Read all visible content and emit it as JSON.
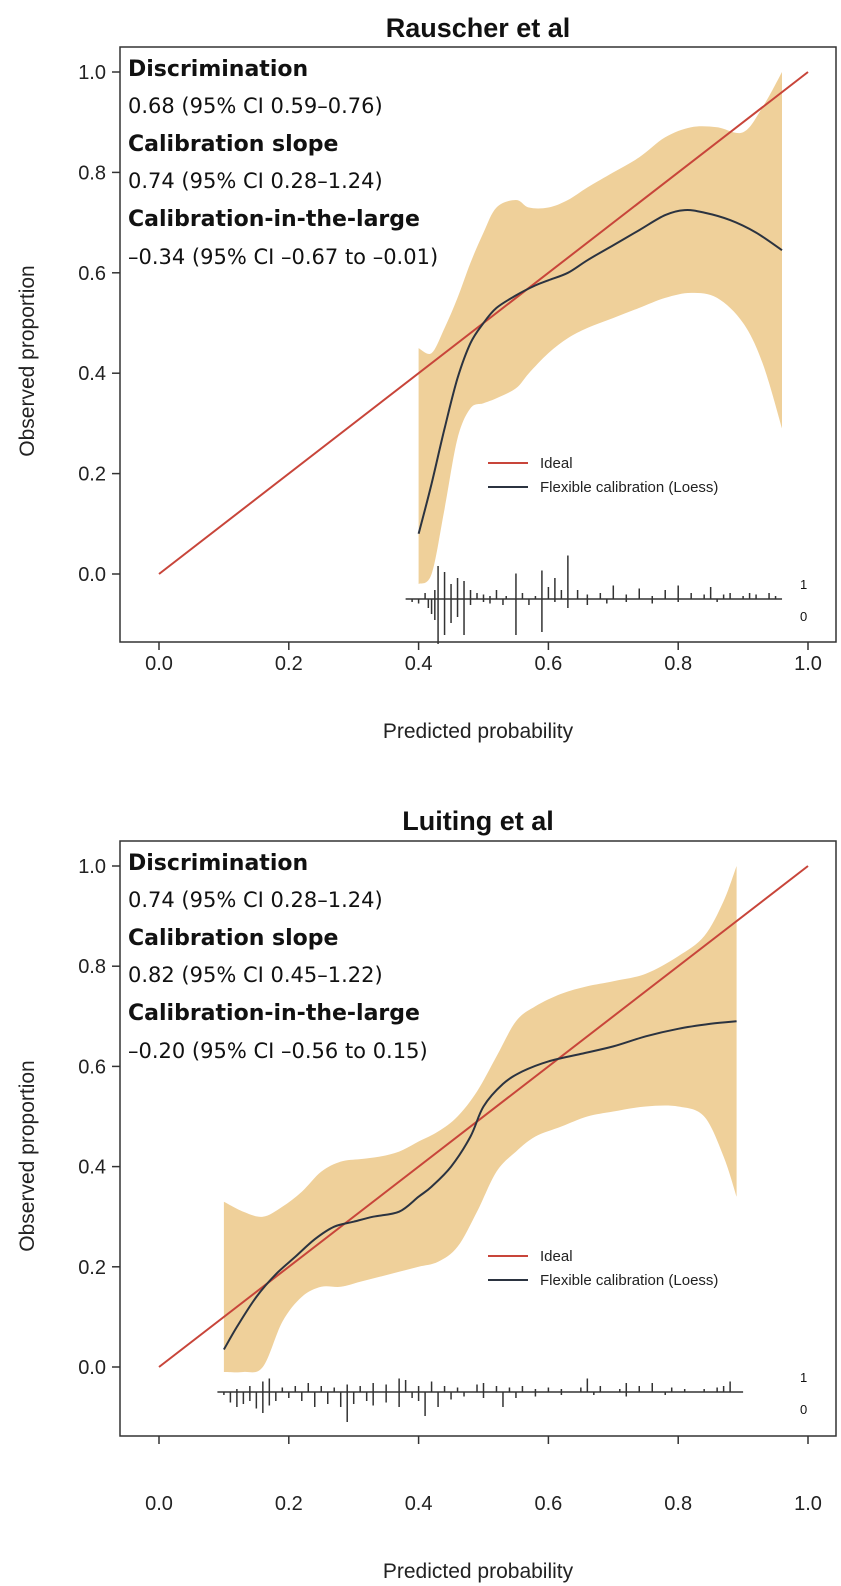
{
  "chart_data": [
    {
      "type": "line",
      "title": "Rauscher et al",
      "xlabel": "Predicted probability",
      "ylabel": "Observed proportion",
      "xlim": [
        -0.06,
        1.03
      ],
      "ylim": [
        -0.15,
        1.03
      ],
      "x_ticks": [
        0.0,
        0.2,
        0.4,
        0.6,
        0.8,
        1.0
      ],
      "y_ticks": [
        0.0,
        0.2,
        0.4,
        0.6,
        0.8,
        1.0
      ],
      "grid": false,
      "colors": {
        "ideal": "#c8453a",
        "loess": "#2b3340",
        "band": "#efd09a"
      },
      "stats": [
        {
          "label": "Discrimination",
          "value": "0.68 (95% CI 0.59–0.76)"
        },
        {
          "label": "Calibration slope",
          "value": "0.74 (95% CI 0.28–1.24)"
        },
        {
          "label": "Calibration-in-the-large",
          "value": "–0.34 (95% CI –0.67 to –0.01)"
        }
      ],
      "legend": {
        "position": "bottom-right",
        "entries": [
          "Ideal",
          "Flexible calibration (Loess)"
        ]
      },
      "series": [
        {
          "name": "Ideal",
          "x": [
            0.0,
            1.0
          ],
          "y": [
            0.0,
            1.0
          ]
        },
        {
          "name": "Flexible calibration (Loess)",
          "x": [
            0.4,
            0.42,
            0.44,
            0.46,
            0.48,
            0.5,
            0.52,
            0.55,
            0.58,
            0.6,
            0.63,
            0.66,
            0.7,
            0.74,
            0.78,
            0.81,
            0.84,
            0.88,
            0.92,
            0.96
          ],
          "y": [
            0.08,
            0.18,
            0.29,
            0.39,
            0.46,
            0.5,
            0.53,
            0.555,
            0.575,
            0.585,
            0.6,
            0.625,
            0.655,
            0.685,
            0.715,
            0.725,
            0.72,
            0.705,
            0.68,
            0.645
          ]
        }
      ],
      "band": {
        "x": [
          0.4,
          0.42,
          0.44,
          0.46,
          0.48,
          0.5,
          0.52,
          0.55,
          0.57,
          0.6,
          0.63,
          0.66,
          0.7,
          0.74,
          0.78,
          0.82,
          0.86,
          0.9,
          0.93,
          0.96
        ],
        "upper": [
          0.45,
          0.44,
          0.49,
          0.55,
          0.62,
          0.68,
          0.73,
          0.745,
          0.73,
          0.73,
          0.745,
          0.77,
          0.8,
          0.83,
          0.87,
          0.89,
          0.89,
          0.88,
          0.93,
          1.0
        ],
        "lower": [
          -0.02,
          0.0,
          0.13,
          0.27,
          0.33,
          0.34,
          0.35,
          0.37,
          0.4,
          0.44,
          0.47,
          0.49,
          0.51,
          0.53,
          0.55,
          0.56,
          0.55,
          0.5,
          0.42,
          0.29
        ]
      },
      "rug": {
        "x_range": [
          0.38,
          0.96
        ],
        "events": [
          [
            0.41,
            0.02
          ],
          [
            0.425,
            0.03
          ],
          [
            0.43,
            0.11
          ],
          [
            0.44,
            0.09
          ],
          [
            0.45,
            0.05
          ],
          [
            0.46,
            0.07
          ],
          [
            0.47,
            0.06
          ],
          [
            0.48,
            0.03
          ],
          [
            0.49,
            0.02
          ],
          [
            0.5,
            0.015
          ],
          [
            0.51,
            0.01
          ],
          [
            0.52,
            0.03
          ],
          [
            0.535,
            0.01
          ],
          [
            0.55,
            0.085
          ],
          [
            0.56,
            0.02
          ],
          [
            0.58,
            0.01
          ],
          [
            0.59,
            0.095
          ],
          [
            0.6,
            0.04
          ],
          [
            0.61,
            0.07
          ],
          [
            0.62,
            0.03
          ],
          [
            0.63,
            0.145
          ],
          [
            0.645,
            0.03
          ],
          [
            0.66,
            0.015
          ],
          [
            0.68,
            0.02
          ],
          [
            0.7,
            0.045
          ],
          [
            0.72,
            0.015
          ],
          [
            0.74,
            0.035
          ],
          [
            0.76,
            0.01
          ],
          [
            0.78,
            0.03
          ],
          [
            0.8,
            0.045
          ],
          [
            0.82,
            0.02
          ],
          [
            0.84,
            0.015
          ],
          [
            0.85,
            0.04
          ],
          [
            0.87,
            0.015
          ],
          [
            0.88,
            0.02
          ],
          [
            0.9,
            0.01
          ],
          [
            0.91,
            0.02
          ],
          [
            0.92,
            0.015
          ],
          [
            0.94,
            0.02
          ],
          [
            0.95,
            0.01
          ]
        ],
        "nonevents": [
          [
            0.39,
            0.01
          ],
          [
            0.4,
            0.015
          ],
          [
            0.415,
            0.03
          ],
          [
            0.42,
            0.05
          ],
          [
            0.425,
            0.07
          ],
          [
            0.43,
            0.15
          ],
          [
            0.44,
            0.12
          ],
          [
            0.45,
            0.08
          ],
          [
            0.46,
            0.06
          ],
          [
            0.47,
            0.12
          ],
          [
            0.48,
            0.02
          ],
          [
            0.5,
            0.01
          ],
          [
            0.51,
            0.015
          ],
          [
            0.53,
            0.02
          ],
          [
            0.55,
            0.12
          ],
          [
            0.57,
            0.02
          ],
          [
            0.59,
            0.11
          ],
          [
            0.61,
            0.01
          ],
          [
            0.63,
            0.03
          ],
          [
            0.66,
            0.02
          ],
          [
            0.69,
            0.015
          ],
          [
            0.72,
            0.01
          ],
          [
            0.76,
            0.015
          ],
          [
            0.8,
            0.01
          ],
          [
            0.86,
            0.01
          ]
        ],
        "labels": [
          "1",
          "0"
        ]
      }
    },
    {
      "type": "line",
      "title": "Luiting et al",
      "xlabel": "Predicted probability",
      "ylabel": "Observed proportion",
      "xlim": [
        -0.06,
        1.03
      ],
      "ylim": [
        -0.15,
        1.03
      ],
      "x_ticks": [
        0.0,
        0.2,
        0.4,
        0.6,
        0.8,
        1.0
      ],
      "y_ticks": [
        0.0,
        0.2,
        0.4,
        0.6,
        0.8,
        1.0
      ],
      "grid": false,
      "colors": {
        "ideal": "#c8453a",
        "loess": "#2b3340",
        "band": "#efd09a"
      },
      "stats": [
        {
          "label": "Discrimination",
          "value": "0.74 (95% CI 0.28–1.24)"
        },
        {
          "label": "Calibration slope",
          "value": "0.82 (95% CI 0.45–1.22)"
        },
        {
          "label": "Calibration-in-the-large",
          "value": "–0.20 (95% CI –0.56 to 0.15)"
        }
      ],
      "legend": {
        "position": "bottom-right",
        "entries": [
          "Ideal",
          "Flexible calibration (Loess)"
        ]
      },
      "series": [
        {
          "name": "Ideal",
          "x": [
            0.0,
            1.0
          ],
          "y": [
            0.0,
            1.0
          ]
        },
        {
          "name": "Flexible calibration (Loess)",
          "x": [
            0.1,
            0.12,
            0.15,
            0.18,
            0.21,
            0.24,
            0.27,
            0.3,
            0.33,
            0.37,
            0.4,
            0.42,
            0.45,
            0.48,
            0.5,
            0.53,
            0.56,
            0.6,
            0.65,
            0.7,
            0.75,
            0.8,
            0.85,
            0.89
          ],
          "y": [
            0.035,
            0.08,
            0.14,
            0.185,
            0.22,
            0.255,
            0.28,
            0.29,
            0.3,
            0.31,
            0.34,
            0.36,
            0.4,
            0.46,
            0.52,
            0.565,
            0.59,
            0.61,
            0.625,
            0.64,
            0.66,
            0.675,
            0.685,
            0.69
          ]
        }
      ],
      "band": {
        "x": [
          0.1,
          0.13,
          0.16,
          0.19,
          0.22,
          0.25,
          0.28,
          0.31,
          0.34,
          0.37,
          0.4,
          0.43,
          0.46,
          0.49,
          0.52,
          0.55,
          0.58,
          0.62,
          0.66,
          0.7,
          0.75,
          0.8,
          0.84,
          0.87,
          0.89
        ],
        "upper": [
          0.33,
          0.31,
          0.3,
          0.32,
          0.35,
          0.39,
          0.41,
          0.415,
          0.42,
          0.43,
          0.45,
          0.47,
          0.5,
          0.55,
          0.62,
          0.69,
          0.72,
          0.745,
          0.76,
          0.77,
          0.785,
          0.82,
          0.86,
          0.93,
          1.0
        ],
        "lower": [
          -0.01,
          -0.01,
          0.0,
          0.09,
          0.14,
          0.16,
          0.16,
          0.17,
          0.18,
          0.19,
          0.2,
          0.21,
          0.24,
          0.31,
          0.39,
          0.43,
          0.46,
          0.48,
          0.5,
          0.51,
          0.52,
          0.52,
          0.5,
          0.42,
          0.34
        ]
      },
      "rug": {
        "x_range": [
          0.09,
          0.9
        ],
        "events": [
          [
            0.12,
            0.01
          ],
          [
            0.14,
            0.02
          ],
          [
            0.16,
            0.035
          ],
          [
            0.17,
            0.045
          ],
          [
            0.19,
            0.015
          ],
          [
            0.21,
            0.02
          ],
          [
            0.23,
            0.03
          ],
          [
            0.25,
            0.02
          ],
          [
            0.27,
            0.015
          ],
          [
            0.29,
            0.025
          ],
          [
            0.31,
            0.02
          ],
          [
            0.33,
            0.03
          ],
          [
            0.35,
            0.025
          ],
          [
            0.37,
            0.045
          ],
          [
            0.38,
            0.04
          ],
          [
            0.4,
            0.02
          ],
          [
            0.42,
            0.035
          ],
          [
            0.44,
            0.02
          ],
          [
            0.46,
            0.015
          ],
          [
            0.49,
            0.025
          ],
          [
            0.5,
            0.03
          ],
          [
            0.52,
            0.02
          ],
          [
            0.54,
            0.015
          ],
          [
            0.56,
            0.02
          ],
          [
            0.58,
            0.01
          ],
          [
            0.6,
            0.015
          ],
          [
            0.62,
            0.01
          ],
          [
            0.65,
            0.015
          ],
          [
            0.66,
            0.045
          ],
          [
            0.68,
            0.02
          ],
          [
            0.71,
            0.01
          ],
          [
            0.72,
            0.03
          ],
          [
            0.74,
            0.02
          ],
          [
            0.76,
            0.03
          ],
          [
            0.79,
            0.015
          ],
          [
            0.81,
            0.01
          ],
          [
            0.84,
            0.01
          ],
          [
            0.86,
            0.015
          ],
          [
            0.87,
            0.02
          ],
          [
            0.88,
            0.035
          ]
        ],
        "nonevents": [
          [
            0.1,
            0.01
          ],
          [
            0.11,
            0.035
          ],
          [
            0.12,
            0.05
          ],
          [
            0.13,
            0.04
          ],
          [
            0.14,
            0.03
          ],
          [
            0.15,
            0.055
          ],
          [
            0.16,
            0.07
          ],
          [
            0.17,
            0.045
          ],
          [
            0.18,
            0.03
          ],
          [
            0.2,
            0.02
          ],
          [
            0.22,
            0.03
          ],
          [
            0.24,
            0.05
          ],
          [
            0.26,
            0.04
          ],
          [
            0.28,
            0.05
          ],
          [
            0.29,
            0.1
          ],
          [
            0.3,
            0.04
          ],
          [
            0.32,
            0.03
          ],
          [
            0.33,
            0.045
          ],
          [
            0.35,
            0.035
          ],
          [
            0.37,
            0.05
          ],
          [
            0.39,
            0.02
          ],
          [
            0.4,
            0.03
          ],
          [
            0.41,
            0.08
          ],
          [
            0.43,
            0.05
          ],
          [
            0.45,
            0.025
          ],
          [
            0.47,
            0.015
          ],
          [
            0.5,
            0.02
          ],
          [
            0.53,
            0.05
          ],
          [
            0.55,
            0.02
          ],
          [
            0.58,
            0.015
          ],
          [
            0.62,
            0.01
          ],
          [
            0.67,
            0.01
          ],
          [
            0.72,
            0.015
          ],
          [
            0.78,
            0.01
          ]
        ],
        "labels": [
          "1",
          "0"
        ]
      }
    }
  ]
}
